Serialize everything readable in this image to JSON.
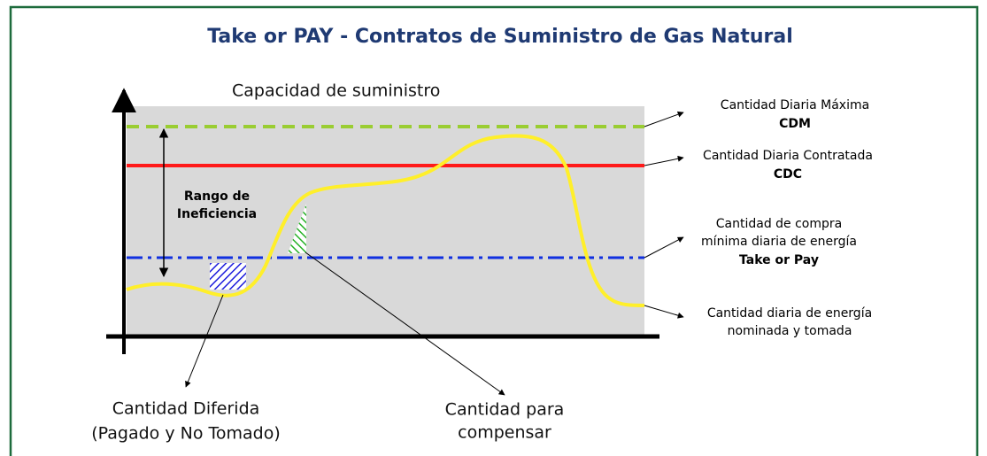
{
  "title": "Take or PAY - Contratos de Suministro de Gas Natural",
  "diagram": {
    "axis_label": "Capacidad de suministro",
    "range_label": [
      "Rango de",
      "Ineficiencia"
    ],
    "cdm": {
      "label": "Cantidad Diaria Máxima",
      "abbr": "CDM"
    },
    "cdc": {
      "label": "Cantidad Diaria Contratada",
      "abbr": "CDC"
    },
    "top": {
      "lines": [
        "Cantidad de compra",
        "mínima diaria de energía"
      ],
      "abbr": "Take or Pay"
    },
    "nominated": {
      "lines": [
        "Cantidad diaria de energía",
        "nominada y tomada"
      ]
    },
    "deferred": {
      "lines": [
        "Cantidad Diferida",
        "(Pagado y No Tomado)"
      ]
    },
    "compensate": {
      "lines": [
        "Cantidad para",
        "compensar"
      ]
    }
  }
}
